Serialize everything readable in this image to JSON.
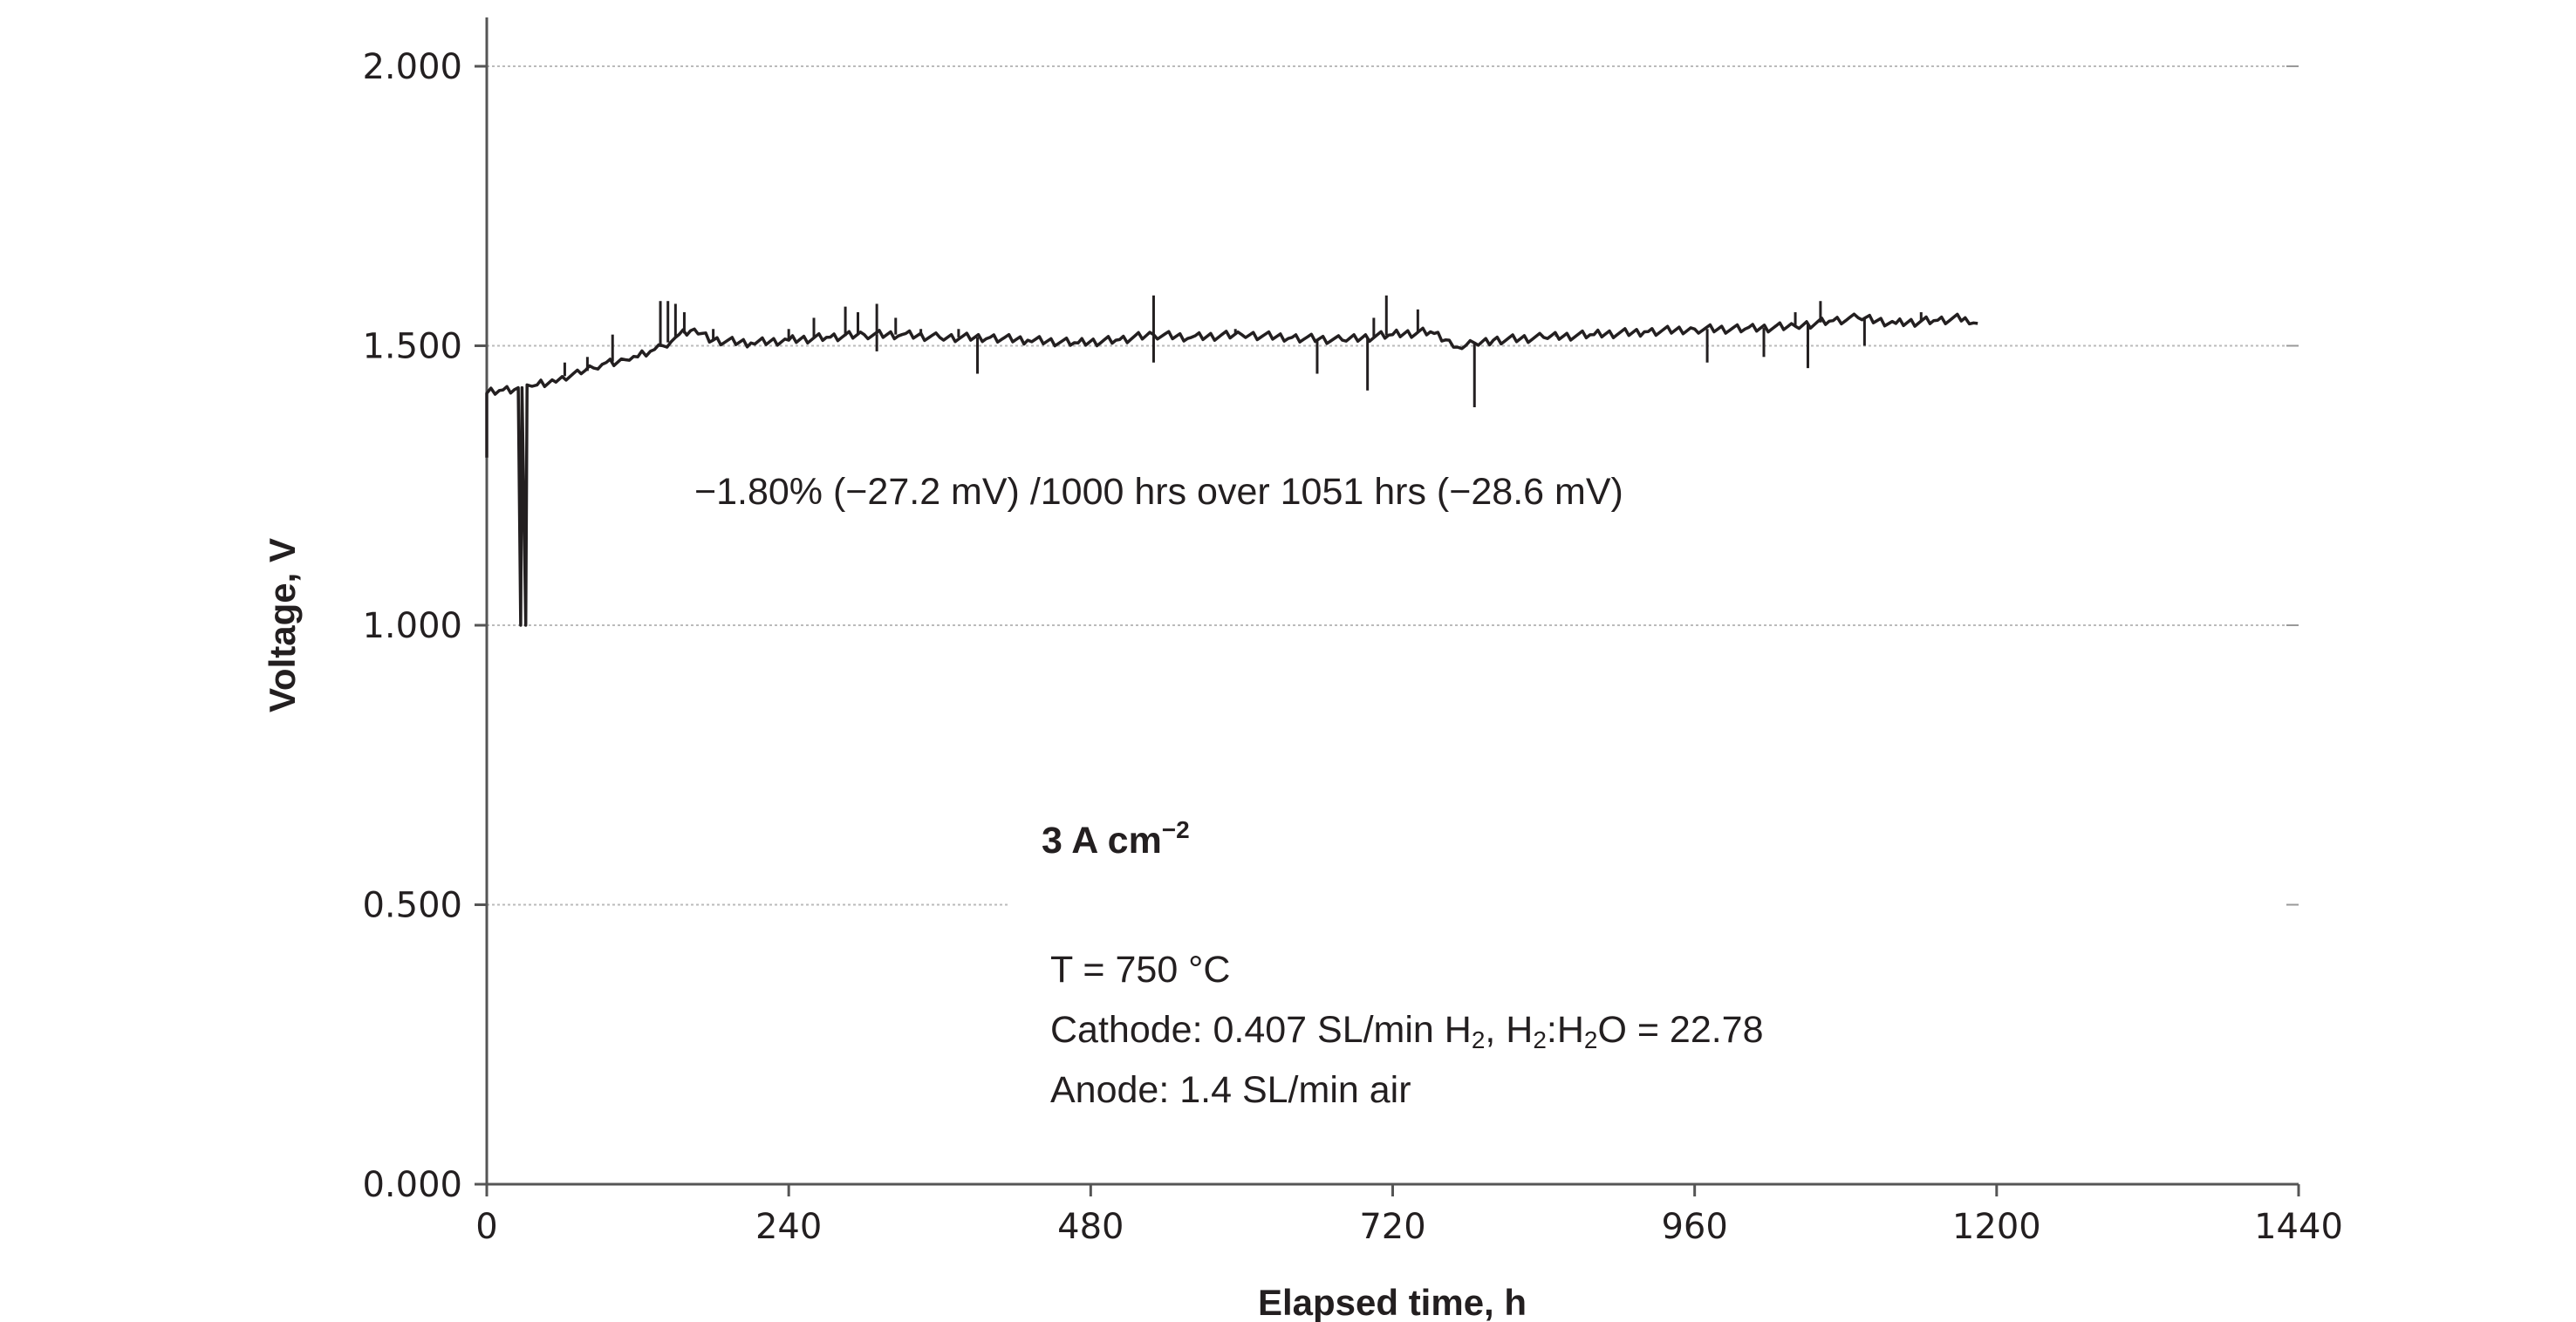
{
  "chart_data": {
    "type": "line",
    "title": "",
    "xlabel": "Elapsed time, h",
    "ylabel": "Voltage, V",
    "xlim": [
      0,
      1440
    ],
    "ylim": [
      0,
      2.0
    ],
    "x_ticks": [
      0,
      240,
      480,
      720,
      960,
      1200,
      1440
    ],
    "x_tick_labels": [
      "0",
      "240",
      "480",
      "720",
      "960",
      "1200",
      "1440"
    ],
    "y_ticks": [
      0,
      0.5,
      1.0,
      1.5,
      2.0
    ],
    "y_tick_labels": [
      "0.000",
      "0.500",
      "1.000",
      "1.500",
      "2.000"
    ],
    "grid": "horizontal dotted",
    "series": [
      {
        "name": "Voltage",
        "color": "#231f20",
        "points": [
          [
            0,
            1.3
          ],
          [
            0,
            1.415
          ],
          [
            10,
            1.42
          ],
          [
            25,
            1.425
          ],
          [
            27,
            1.0
          ],
          [
            28,
            1.425
          ],
          [
            31,
            1.0
          ],
          [
            32,
            1.43
          ],
          [
            40,
            1.43
          ],
          [
            55,
            1.435
          ],
          [
            60,
            1.445
          ],
          [
            75,
            1.45
          ],
          [
            85,
            1.46
          ],
          [
            95,
            1.47
          ],
          [
            110,
            1.475
          ],
          [
            120,
            1.48
          ],
          [
            130,
            1.49
          ],
          [
            140,
            1.5
          ],
          [
            150,
            1.515
          ],
          [
            165,
            1.53
          ],
          [
            180,
            1.51
          ],
          [
            210,
            1.505
          ],
          [
            240,
            1.51
          ],
          [
            270,
            1.515
          ],
          [
            300,
            1.52
          ],
          [
            330,
            1.52
          ],
          [
            360,
            1.515
          ],
          [
            400,
            1.515
          ],
          [
            430,
            1.51
          ],
          [
            470,
            1.505
          ],
          [
            500,
            1.51
          ],
          [
            530,
            1.52
          ],
          [
            560,
            1.515
          ],
          [
            600,
            1.52
          ],
          [
            640,
            1.515
          ],
          [
            680,
            1.51
          ],
          [
            720,
            1.52
          ],
          [
            750,
            1.525
          ],
          [
            765,
            1.51
          ],
          [
            775,
            1.495
          ],
          [
            785,
            1.505
          ],
          [
            800,
            1.51
          ],
          [
            840,
            1.515
          ],
          [
            880,
            1.52
          ],
          [
            920,
            1.525
          ],
          [
            960,
            1.53
          ],
          [
            1000,
            1.53
          ],
          [
            1040,
            1.535
          ],
          [
            1070,
            1.545
          ],
          [
            1090,
            1.55
          ],
          [
            1120,
            1.54
          ],
          [
            1150,
            1.545
          ],
          [
            1175,
            1.55
          ],
          [
            1185,
            1.54
          ]
        ]
      }
    ],
    "spikes": [
      [
        62,
        1.47
      ],
      [
        80,
        1.48
      ],
      [
        100,
        1.52
      ],
      [
        138,
        1.58
      ],
      [
        144,
        1.58
      ],
      [
        150,
        1.575
      ],
      [
        157,
        1.56
      ],
      [
        180,
        1.53
      ],
      [
        240,
        1.53
      ],
      [
        260,
        1.55
      ],
      [
        285,
        1.57
      ],
      [
        295,
        1.56
      ],
      [
        310,
        1.575
      ],
      [
        325,
        1.55
      ],
      [
        345,
        1.53
      ],
      [
        375,
        1.53
      ],
      [
        390,
        1.45
      ],
      [
        310,
        1.49
      ],
      [
        530,
        1.59
      ],
      [
        530,
        1.47
      ],
      [
        595,
        1.53
      ],
      [
        660,
        1.45
      ],
      [
        700,
        1.42
      ],
      [
        705,
        1.55
      ],
      [
        715,
        1.59
      ],
      [
        740,
        1.565
      ],
      [
        785,
        1.39
      ],
      [
        850,
        1.52
      ],
      [
        970,
        1.47
      ],
      [
        1015,
        1.48
      ],
      [
        1040,
        1.56
      ],
      [
        1050,
        1.46
      ],
      [
        1060,
        1.58
      ],
      [
        1075,
        1.545
      ],
      [
        1095,
        1.5
      ],
      [
        1140,
        1.56
      ]
    ],
    "annotations": {
      "degradation": "−1.80% (−27.2 mV) /1000 hrs over 1051 hrs (−28.6 mV)",
      "current_density_base": "3 A cm",
      "current_density_exp": "−2",
      "temperature": "T = 750 °C",
      "cathode_prefix": "Cathode: 0.407 SL/min H",
      "cathode_sub1": "2",
      "cathode_mid1": ", H",
      "cathode_sub2": "2",
      "cathode_mid2": ":H",
      "cathode_sub3": "2",
      "cathode_suffix": "O = 22.78",
      "anode": "Anode: 1.4 SL/min air"
    }
  }
}
